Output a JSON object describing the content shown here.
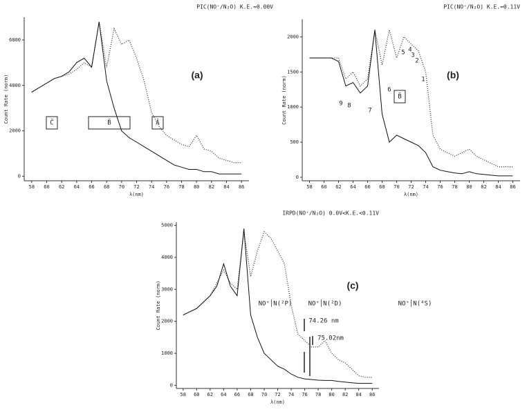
{
  "chart_data": [
    {
      "type": "line",
      "title": "PIC(NO⁺/N₂O) K.E.=0.00V",
      "panel_label": "(a)",
      "x_label": "λ(nm)",
      "y_label": "Count Rate (norm)",
      "x": [
        58,
        59,
        60,
        61,
        62,
        63,
        64,
        65,
        66,
        67,
        68,
        69,
        70,
        71,
        72,
        73,
        74,
        75,
        76,
        77,
        78,
        79,
        80,
        81,
        82,
        83,
        84,
        85,
        86
      ],
      "xlim": [
        57,
        87
      ],
      "xticks": [
        58,
        60,
        62,
        64,
        66,
        68,
        70,
        72,
        74,
        76,
        78,
        80,
        82,
        84,
        86
      ],
      "ylim": [
        -200,
        7000
      ],
      "yticks": [
        0,
        2000,
        4000,
        6000
      ],
      "series": [
        {
          "color": "#333333",
          "line_style": "dotted",
          "values": [
            3700,
            3900,
            4100,
            4300,
            4400,
            4500,
            4700,
            5000,
            4800,
            6800,
            4800,
            6500,
            5800,
            6000,
            5200,
            4200,
            2800,
            2200,
            1800,
            1600,
            1400,
            1300,
            1800,
            1200,
            1100,
            800,
            700,
            600,
            600
          ]
        },
        {
          "color": "#111111",
          "line_style": "solid",
          "values": [
            3700,
            3900,
            4100,
            4300,
            4400,
            4600,
            5000,
            5200,
            4800,
            6800,
            4200,
            3000,
            2000,
            1700,
            1500,
            1300,
            1100,
            900,
            700,
            500,
            400,
            300,
            300,
            200,
            200,
            100,
            100,
            100,
            100
          ]
        }
      ],
      "annotations": [
        "C̃",
        "B̃",
        "Ã"
      ]
    },
    {
      "type": "line",
      "title": "PIC(NO⁺/N₂O) K.E.=0.11V",
      "panel_label": "(b)",
      "x_label": "λ(nm)",
      "y_label": "Count Rate (norm)",
      "x": [
        58,
        59,
        60,
        61,
        62,
        63,
        64,
        65,
        66,
        67,
        68,
        69,
        70,
        71,
        72,
        73,
        74,
        75,
        76,
        77,
        78,
        79,
        80,
        81,
        82,
        83,
        84,
        85,
        86
      ],
      "xlim": [
        57,
        87
      ],
      "xticks": [
        58,
        60,
        62,
        64,
        66,
        68,
        70,
        72,
        74,
        76,
        78,
        80,
        82,
        84,
        86
      ],
      "ylim": [
        -50,
        2250
      ],
      "yticks": [
        0,
        500,
        1000,
        1500,
        2000
      ],
      "series": [
        {
          "color": "#333333",
          "line_style": "dotted",
          "values": [
            1700,
            1700,
            1700,
            1700,
            1700,
            1400,
            1500,
            1300,
            1400,
            2100,
            1600,
            2100,
            1700,
            2000,
            1900,
            1800,
            1500,
            600,
            400,
            350,
            300,
            350,
            400,
            300,
            250,
            200,
            150,
            150,
            150
          ]
        },
        {
          "color": "#111111",
          "line_style": "solid",
          "values": [
            1700,
            1700,
            1700,
            1700,
            1650,
            1300,
            1350,
            1200,
            1300,
            2100,
            900,
            500,
            600,
            550,
            500,
            450,
            350,
            150,
            100,
            80,
            60,
            50,
            80,
            50,
            40,
            30,
            20,
            20,
            20
          ]
        }
      ],
      "annotations": [
        "1",
        "2",
        "3",
        "4",
        "5",
        "6",
        "7",
        "8",
        "9",
        "B̃"
      ]
    },
    {
      "type": "line",
      "title": "IRPD(NO⁺/N₂O) 0.0V<K.E.<0.11V",
      "panel_label": "(c)",
      "x_label": "λ(nm)",
      "y_label": "Count Rate (norm)",
      "x": [
        58,
        59,
        60,
        61,
        62,
        63,
        64,
        65,
        66,
        67,
        68,
        69,
        70,
        71,
        72,
        73,
        74,
        75,
        76,
        77,
        78,
        79,
        80,
        81,
        82,
        83,
        84,
        85,
        86
      ],
      "xlim": [
        57,
        87
      ],
      "xticks": [
        58,
        60,
        62,
        64,
        66,
        68,
        70,
        72,
        74,
        76,
        78,
        80,
        82,
        84,
        86
      ],
      "ylim": [
        -100,
        5100
      ],
      "yticks": [
        0,
        1000,
        2000,
        3000,
        4000,
        5000
      ],
      "series": [
        {
          "color": "#333333",
          "line_style": "dotted",
          "values": [
            2200,
            2300,
            2400,
            2600,
            2800,
            3200,
            3600,
            3200,
            3000,
            4800,
            3400,
            4200,
            4800,
            4600,
            4200,
            3800,
            2500,
            1600,
            1400,
            1200,
            1200,
            1400,
            1000,
            800,
            700,
            500,
            300,
            250,
            250
          ]
        },
        {
          "color": "#111111",
          "line_style": "solid",
          "values": [
            2200,
            2300,
            2400,
            2600,
            2800,
            3100,
            3800,
            3100,
            2800,
            4900,
            2200,
            1500,
            1000,
            800,
            600,
            500,
            350,
            250,
            200,
            180,
            160,
            150,
            150,
            120,
            100,
            80,
            60,
            60,
            60
          ]
        }
      ],
      "annotations": [
        "NO⁺│N(²P)",
        "NO⁺│N(²D)",
        "NO⁺│N(⁴S)",
        "74.26 nm",
        "75.02nm"
      ]
    }
  ]
}
